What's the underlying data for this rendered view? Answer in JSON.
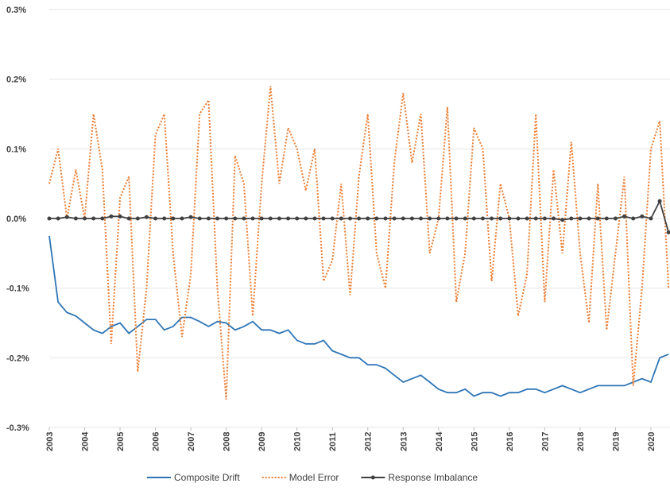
{
  "chart_data": {
    "type": "line",
    "x": [
      2003.0,
      2003.25,
      2003.5,
      2003.75,
      2004.0,
      2004.25,
      2004.5,
      2004.75,
      2005.0,
      2005.25,
      2005.5,
      2005.75,
      2006.0,
      2006.25,
      2006.5,
      2006.75,
      2007.0,
      2007.25,
      2007.5,
      2007.75,
      2008.0,
      2008.25,
      2008.5,
      2008.75,
      2009.0,
      2009.25,
      2009.5,
      2009.75,
      2010.0,
      2010.25,
      2010.5,
      2010.75,
      2011.0,
      2011.25,
      2011.5,
      2011.75,
      2012.0,
      2012.25,
      2012.5,
      2012.75,
      2013.0,
      2013.25,
      2013.5,
      2013.75,
      2014.0,
      2014.25,
      2014.5,
      2014.75,
      2015.0,
      2015.25,
      2015.5,
      2015.75,
      2016.0,
      2016.25,
      2016.5,
      2016.75,
      2017.0,
      2017.25,
      2017.5,
      2017.75,
      2018.0,
      2018.25,
      2018.5,
      2018.75,
      2019.0,
      2019.25,
      2019.5,
      2019.75,
      2020.0,
      2020.25,
      2020.5
    ],
    "series": [
      {
        "name": "Composite Drift",
        "color": "#2e75b6",
        "style": "solid",
        "markers": false,
        "values": [
          -0.025,
          -0.12,
          -0.135,
          -0.14,
          -0.15,
          -0.16,
          -0.165,
          -0.155,
          -0.15,
          -0.165,
          -0.155,
          -0.145,
          -0.145,
          -0.16,
          -0.155,
          -0.142,
          -0.142,
          -0.148,
          -0.155,
          -0.148,
          -0.15,
          -0.16,
          -0.155,
          -0.148,
          -0.16,
          -0.16,
          -0.165,
          -0.16,
          -0.175,
          -0.18,
          -0.18,
          -0.175,
          -0.19,
          -0.195,
          -0.2,
          -0.2,
          -0.21,
          -0.21,
          -0.215,
          -0.225,
          -0.235,
          -0.23,
          -0.225,
          -0.235,
          -0.245,
          -0.25,
          -0.25,
          -0.245,
          -0.255,
          -0.25,
          -0.25,
          -0.255,
          -0.25,
          -0.25,
          -0.245,
          -0.245,
          -0.25,
          -0.245,
          -0.24,
          -0.245,
          -0.25,
          -0.245,
          -0.24,
          -0.24,
          -0.24,
          -0.24,
          -0.235,
          -0.23,
          -0.235,
          -0.2,
          -0.195
        ]
      },
      {
        "name": "Model Error",
        "color": "#ed7d31",
        "style": "dotted",
        "markers": false,
        "values": [
          0.05,
          0.1,
          0.0,
          0.07,
          0.0,
          0.15,
          0.07,
          -0.18,
          0.03,
          0.06,
          -0.22,
          -0.1,
          0.12,
          0.15,
          -0.05,
          -0.17,
          -0.08,
          0.15,
          0.17,
          -0.1,
          -0.26,
          0.09,
          0.05,
          -0.14,
          0.05,
          0.19,
          0.05,
          0.13,
          0.1,
          0.04,
          0.1,
          -0.09,
          -0.06,
          0.05,
          -0.11,
          0.06,
          0.15,
          -0.05,
          -0.1,
          0.08,
          0.18,
          0.08,
          0.15,
          -0.05,
          0.0,
          0.16,
          -0.12,
          -0.05,
          0.13,
          0.1,
          -0.09,
          0.05,
          0.0,
          -0.14,
          -0.08,
          0.15,
          -0.12,
          0.07,
          -0.05,
          0.11,
          -0.05,
          -0.15,
          0.05,
          -0.16,
          -0.05,
          0.06,
          -0.24,
          -0.1,
          0.1,
          0.14,
          -0.1
        ]
      },
      {
        "name": "Response Imbalance",
        "color": "#404040",
        "style": "solid",
        "markers": true,
        "values": [
          0.0,
          0.0,
          0.002,
          0.0,
          0.0,
          0.0,
          0.0,
          0.003,
          0.003,
          0.0,
          0.0,
          0.002,
          0.0,
          0.0,
          0.0,
          0.0,
          0.002,
          0.0,
          0.0,
          0.0,
          0.0,
          0.0,
          0.0,
          0.0,
          0.0,
          0.0,
          0.0,
          0.0,
          0.0,
          0.0,
          0.0,
          0.0,
          0.0,
          0.0,
          0.0,
          0.0,
          0.0,
          0.0,
          0.0,
          0.0,
          0.0,
          0.0,
          0.0,
          0.0,
          0.0,
          0.0,
          0.0,
          0.0,
          0.0,
          0.0,
          0.0,
          0.0,
          0.0,
          0.0,
          0.0,
          0.0,
          0.0,
          0.0,
          -0.002,
          0.0,
          0.0,
          0.0,
          0.0,
          0.0,
          0.0,
          0.003,
          0.0,
          0.003,
          0.0,
          0.025,
          -0.02
        ]
      }
    ],
    "xlim": [
      2003,
      2020.54
    ],
    "xticks": [
      2003,
      2004,
      2005,
      2006,
      2007,
      2008,
      2009,
      2010,
      2011,
      2012,
      2013,
      2014,
      2015,
      2016,
      2017,
      2018,
      2019,
      2020
    ],
    "ylim": [
      -0.3,
      0.3
    ],
    "yticks": [
      {
        "value": -0.3,
        "label": "-0.3%"
      },
      {
        "value": -0.2,
        "label": "-0.2%"
      },
      {
        "value": -0.1,
        "label": "-0.1%"
      },
      {
        "value": 0,
        "label": "0.0%"
      },
      {
        "value": 0.1,
        "label": "0.1%"
      },
      {
        "value": 0.2,
        "label": "0.2%"
      },
      {
        "value": 0.3,
        "label": "0.3%"
      }
    ],
    "grid": true,
    "legend": "bottom"
  }
}
